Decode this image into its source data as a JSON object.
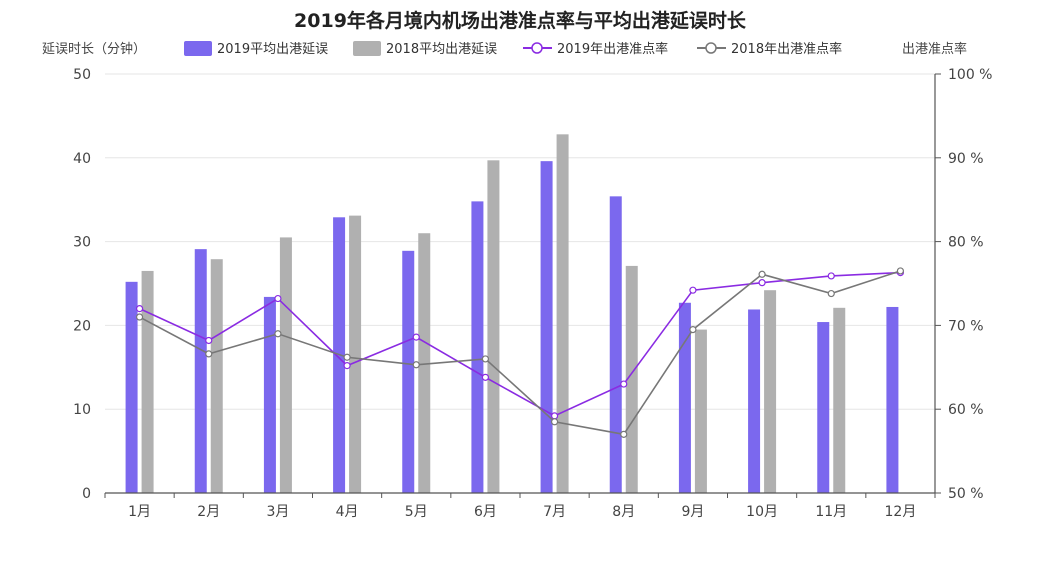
{
  "chart_data": {
    "type": "bar",
    "title": "2019年各月境内机场出港准点率与平均出港延误时长",
    "left_axis_label": "延误时长（分钟）",
    "right_axis_label": "出港准点率",
    "categories": [
      "1月",
      "2月",
      "3月",
      "4月",
      "5月",
      "6月",
      "7月",
      "8月",
      "9月",
      "10月",
      "11月",
      "12月"
    ],
    "left_axis": {
      "min": 0,
      "max": 50,
      "ticks": [
        0,
        10,
        20,
        30,
        40,
        50
      ]
    },
    "right_axis": {
      "min": 50,
      "max": 100,
      "ticks": [
        50,
        60,
        70,
        80,
        90,
        100
      ],
      "unit": "%"
    },
    "bar_series": [
      {
        "name": "2019平均出港延误",
        "color": "#7B68EE",
        "values": [
          25.2,
          29.1,
          23.4,
          32.9,
          28.9,
          34.8,
          39.6,
          35.4,
          22.7,
          21.9,
          20.4,
          22.2
        ]
      },
      {
        "name": "2018平均出港延误",
        "color": "#B0B0B0",
        "values": [
          26.5,
          27.9,
          30.5,
          33.1,
          31.0,
          39.7,
          42.8,
          27.1,
          19.5,
          24.2,
          22.1,
          null
        ]
      }
    ],
    "line_series": [
      {
        "name": "2019年出港准点率",
        "color": "#8A2BE2",
        "values": [
          72.0,
          68.2,
          73.2,
          65.2,
          68.6,
          63.8,
          59.2,
          63.0,
          74.2,
          75.1,
          75.9,
          76.3
        ]
      },
      {
        "name": "2018年出港准点率",
        "color": "#777777",
        "values": [
          71.0,
          66.6,
          69.0,
          66.2,
          65.3,
          66.0,
          58.5,
          57.0,
          69.5,
          76.1,
          73.8,
          76.5
        ]
      }
    ],
    "grid": true,
    "legend_position": "top"
  }
}
